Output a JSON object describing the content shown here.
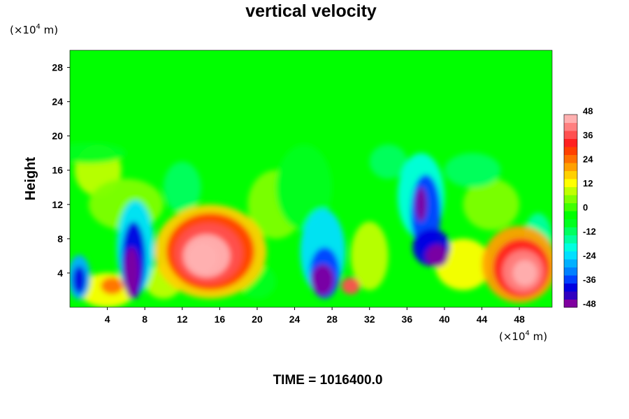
{
  "chart_data": {
    "type": "heatmap",
    "title": "vertical velocity",
    "xunit_prefix": "(×10",
    "xunit_exp": "4",
    "xunit_suffix": " m)",
    "yunit_prefix": "(×10",
    "yunit_exp": "4",
    "yunit_suffix": " m)",
    "ylabel": "Height",
    "xlabel": "",
    "xlim": [
      0,
      51.5
    ],
    "ylim": [
      0,
      30
    ],
    "xticks": [
      4,
      8,
      12,
      16,
      20,
      24,
      28,
      32,
      36,
      40,
      44,
      48
    ],
    "yticks": [
      4,
      8,
      12,
      16,
      20,
      24,
      28
    ],
    "colorbar": {
      "ticks": [
        48,
        36,
        24,
        12,
        0,
        -12,
        -24,
        -36,
        -48
      ],
      "range": [
        -48,
        48
      ],
      "levels": 24,
      "colors": [
        "#8000a0",
        "#3000c0",
        "#0000e0",
        "#0040ff",
        "#0080ff",
        "#00b0ff",
        "#00e0ff",
        "#00ffe0",
        "#00ffa0",
        "#00ff60",
        "#00ff20",
        "#00ff00",
        "#40ff00",
        "#80ff00",
        "#c0ff00",
        "#ffff00",
        "#ffd000",
        "#ffa000",
        "#ff7000",
        "#ff4000",
        "#ff2020",
        "#ff5050",
        "#ff8080",
        "#ffb0b0"
      ]
    },
    "features": [
      {
        "x": 1.0,
        "y": 3.5,
        "value": -36
      },
      {
        "x": 6.5,
        "y": 5.0,
        "value": -48
      },
      {
        "x": 14.5,
        "y": 6.5,
        "value": 48
      },
      {
        "x": 27.0,
        "y": 3.0,
        "value": -48
      },
      {
        "x": 30.0,
        "y": 2.5,
        "value": 36
      },
      {
        "x": 38.0,
        "y": 7.5,
        "value": -48
      },
      {
        "x": 48.5,
        "y": 4.0,
        "value": 48
      }
    ]
  },
  "time_label": "TIME = 1016400.0"
}
